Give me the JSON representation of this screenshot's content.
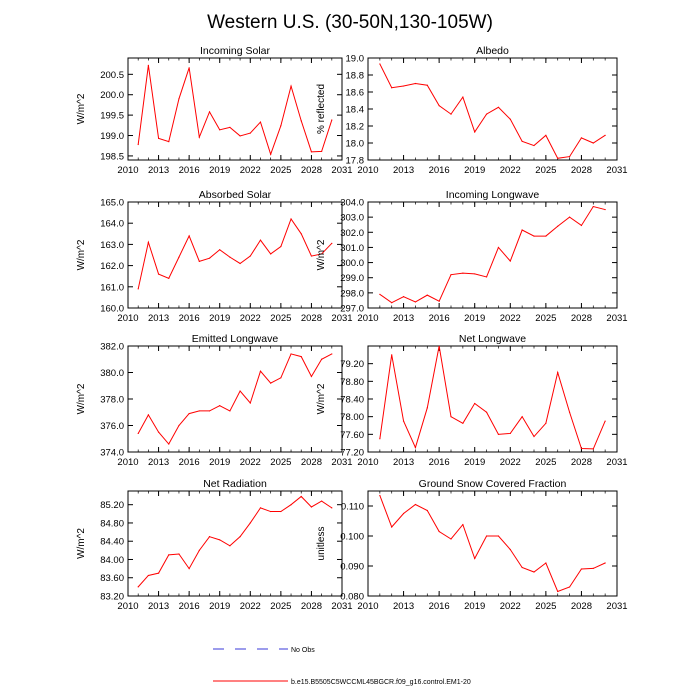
{
  "page_title": "Western U.S. (30-50N,130-105W)",
  "colors": {
    "series": "#ff0000",
    "no_obs": "#3a3ad8",
    "axis": "#000000"
  },
  "legend": {
    "no_obs_label": "No Obs",
    "model_label": "b.e15.B5505C5WCCML45BGCR.f09_g16.control.EM1-20"
  },
  "chart_data": [
    {
      "type": "line",
      "title": "Incoming Solar",
      "ylabel": "W/m^2",
      "xlim": [
        2010,
        2031
      ],
      "xticks": [
        "2010",
        "2013",
        "2016",
        "2019",
        "2022",
        "2025",
        "2028",
        "2031"
      ],
      "ylim": [
        198.4,
        200.9
      ],
      "yticks": [
        "198.5",
        "199.0",
        "199.5",
        "200.0",
        "200.5"
      ],
      "x": [
        2011,
        2012,
        2013,
        2014,
        2015,
        2016,
        2017,
        2018,
        2019,
        2020,
        2021,
        2022,
        2023,
        2024,
        2025,
        2026,
        2027,
        2028,
        2029,
        2030
      ],
      "series": [
        {
          "name": "b.e15.B5505C5WCCML45BGCR.f09_g16.control.EM1-20",
          "values": [
            198.78,
            200.72,
            198.93,
            198.85,
            199.9,
            200.66,
            198.96,
            199.58,
            199.14,
            199.2,
            198.99,
            199.06,
            199.33,
            198.54,
            199.24,
            200.21,
            199.36,
            198.6,
            198.61,
            199.38
          ]
        }
      ]
    },
    {
      "type": "line",
      "title": "Albedo",
      "ylabel": "% reflected",
      "xlim": [
        2010,
        2031
      ],
      "xticks": [
        "2010",
        "2013",
        "2016",
        "2019",
        "2022",
        "2025",
        "2028",
        "2031"
      ],
      "ylim": [
        17.8,
        19.0
      ],
      "yticks": [
        "17.8",
        "18.0",
        "18.2",
        "18.4",
        "18.6",
        "18.8",
        "19.0"
      ],
      "x": [
        2011,
        2012,
        2013,
        2014,
        2015,
        2016,
        2017,
        2018,
        2019,
        2020,
        2021,
        2022,
        2023,
        2024,
        2025,
        2026,
        2027,
        2028,
        2029,
        2030
      ],
      "series": [
        {
          "name": "b.e15.B5505C5WCCML45BGCR.f09_g16.control.EM1-20",
          "values": [
            18.93,
            18.65,
            18.67,
            18.7,
            18.68,
            18.44,
            18.34,
            18.54,
            18.13,
            18.34,
            18.42,
            18.28,
            18.02,
            17.97,
            18.09,
            17.82,
            17.84,
            18.06,
            18.0,
            18.09
          ]
        }
      ]
    },
    {
      "type": "line",
      "title": "Absorbed Solar",
      "ylabel": "W/m^2",
      "xlim": [
        2010,
        2031
      ],
      "xticks": [
        "2010",
        "2013",
        "2016",
        "2019",
        "2022",
        "2025",
        "2028",
        "2031"
      ],
      "ylim": [
        160.0,
        165.0
      ],
      "yticks": [
        "160.0",
        "161.0",
        "162.0",
        "163.0",
        "164.0",
        "165.0"
      ],
      "x": [
        2011,
        2012,
        2013,
        2014,
        2015,
        2016,
        2017,
        2018,
        2019,
        2020,
        2021,
        2022,
        2023,
        2024,
        2025,
        2026,
        2027,
        2028,
        2029,
        2030
      ],
      "series": [
        {
          "name": "b.e15.B5505C5WCCML45BGCR.f09_g16.control.EM1-20",
          "values": [
            160.9,
            163.1,
            161.6,
            161.4,
            162.4,
            163.4,
            162.2,
            162.35,
            162.75,
            162.4,
            162.1,
            162.45,
            163.2,
            162.55,
            162.9,
            164.2,
            163.5,
            162.45,
            162.55,
            163.05
          ]
        }
      ]
    },
    {
      "type": "line",
      "title": "Incoming Longwave",
      "ylabel": "W/m^2",
      "xlim": [
        2010,
        2031
      ],
      "xticks": [
        "2010",
        "2013",
        "2016",
        "2019",
        "2022",
        "2025",
        "2028",
        "2031"
      ],
      "ylim": [
        297.0,
        304.0
      ],
      "yticks": [
        "297.0",
        "298.0",
        "299.0",
        "300.0",
        "301.0",
        "302.0",
        "303.0",
        "304.0"
      ],
      "x": [
        2011,
        2012,
        2013,
        2014,
        2015,
        2016,
        2017,
        2018,
        2019,
        2020,
        2021,
        2022,
        2023,
        2024,
        2025,
        2026,
        2027,
        2028,
        2029,
        2030
      ],
      "series": [
        {
          "name": "b.e15.B5505C5WCCML45BGCR.f09_g16.control.EM1-20",
          "values": [
            297.9,
            297.35,
            297.75,
            297.4,
            297.85,
            297.45,
            299.2,
            299.3,
            299.25,
            299.05,
            301.0,
            300.1,
            302.15,
            301.75,
            301.75,
            302.4,
            303.0,
            302.45,
            303.7,
            303.5
          ]
        }
      ]
    },
    {
      "type": "line",
      "title": "Emitted Longwave",
      "ylabel": "W/m^2",
      "xlim": [
        2010,
        2031
      ],
      "xticks": [
        "2010",
        "2013",
        "2016",
        "2019",
        "2022",
        "2025",
        "2028",
        "2031"
      ],
      "ylim": [
        374.0,
        382.0
      ],
      "yticks": [
        "374.0",
        "376.0",
        "378.0",
        "380.0",
        "382.0"
      ],
      "x": [
        2011,
        2012,
        2013,
        2014,
        2015,
        2016,
        2017,
        2018,
        2019,
        2020,
        2021,
        2022,
        2023,
        2024,
        2025,
        2026,
        2027,
        2028,
        2029,
        2030
      ],
      "series": [
        {
          "name": "b.e15.B5505C5WCCML45BGCR.f09_g16.control.EM1-20",
          "values": [
            375.4,
            376.8,
            375.5,
            374.6,
            376.0,
            376.9,
            377.1,
            377.1,
            377.5,
            377.1,
            378.6,
            377.7,
            380.1,
            379.2,
            379.6,
            381.4,
            381.2,
            379.7,
            381.0,
            381.4
          ]
        }
      ]
    },
    {
      "type": "line",
      "title": "Net Longwave",
      "ylabel": "W/m^2",
      "xlim": [
        2010,
        2031
      ],
      "xticks": [
        "2010",
        "2013",
        "2016",
        "2019",
        "2022",
        "2025",
        "2028",
        "2031"
      ],
      "ylim": [
        77.2,
        79.6
      ],
      "yticks": [
        "77.20",
        "77.60",
        "78.00",
        "78.40",
        "78.80",
        "79.20"
      ],
      "x": [
        2011,
        2012,
        2013,
        2014,
        2015,
        2016,
        2017,
        2018,
        2019,
        2020,
        2021,
        2022,
        2023,
        2024,
        2025,
        2026,
        2027,
        2028,
        2029,
        2030
      ],
      "series": [
        {
          "name": "b.e15.B5505C5WCCML45BGCR.f09_g16.control.EM1-20",
          "values": [
            77.5,
            79.4,
            77.9,
            77.3,
            78.2,
            79.6,
            78.0,
            77.85,
            78.3,
            78.1,
            77.6,
            77.62,
            78.0,
            77.55,
            77.85,
            79.0,
            78.1,
            77.28,
            77.27,
            77.9
          ]
        }
      ]
    },
    {
      "type": "line",
      "title": "Net Radiation",
      "ylabel": "W/m^2",
      "xlim": [
        2010,
        2031
      ],
      "xticks": [
        "2010",
        "2013",
        "2016",
        "2019",
        "2022",
        "2025",
        "2028",
        "2031"
      ],
      "ylim": [
        83.2,
        85.5
      ],
      "yticks": [
        "83.20",
        "83.60",
        "84.00",
        "84.40",
        "84.80",
        "85.20"
      ],
      "x": [
        2011,
        2012,
        2013,
        2014,
        2015,
        2016,
        2017,
        2018,
        2019,
        2020,
        2021,
        2022,
        2023,
        2024,
        2025,
        2026,
        2027,
        2028,
        2029,
        2030
      ],
      "series": [
        {
          "name": "b.e15.B5505C5WCCML45BGCR.f09_g16.control.EM1-20",
          "values": [
            83.4,
            83.65,
            83.7,
            84.1,
            84.12,
            83.8,
            84.2,
            84.5,
            84.43,
            84.3,
            84.5,
            84.8,
            85.13,
            85.05,
            85.05,
            85.2,
            85.38,
            85.15,
            85.28,
            85.13
          ]
        }
      ]
    },
    {
      "type": "line",
      "title": "Ground Snow Covered Fraction",
      "ylabel": "unitless",
      "xlim": [
        2010,
        2031
      ],
      "xticks": [
        "2010",
        "2013",
        "2016",
        "2019",
        "2022",
        "2025",
        "2028",
        "2031"
      ],
      "ylim": [
        0.08,
        0.115
      ],
      "yticks": [
        "0.080",
        "0.090",
        "0.100",
        "0.110"
      ],
      "x": [
        2011,
        2012,
        2013,
        2014,
        2015,
        2016,
        2017,
        2018,
        2019,
        2020,
        2021,
        2022,
        2023,
        2024,
        2025,
        2026,
        2027,
        2028,
        2029,
        2030
      ],
      "series": [
        {
          "name": "b.e15.B5505C5WCCML45BGCR.f09_g16.control.EM1-20",
          "values": [
            0.1135,
            0.103,
            0.1075,
            0.1105,
            0.1085,
            0.1015,
            0.099,
            0.1038,
            0.0925,
            0.1,
            0.1,
            0.0955,
            0.0895,
            0.088,
            0.091,
            0.0815,
            0.083,
            0.089,
            0.0892,
            0.091
          ]
        }
      ]
    }
  ]
}
